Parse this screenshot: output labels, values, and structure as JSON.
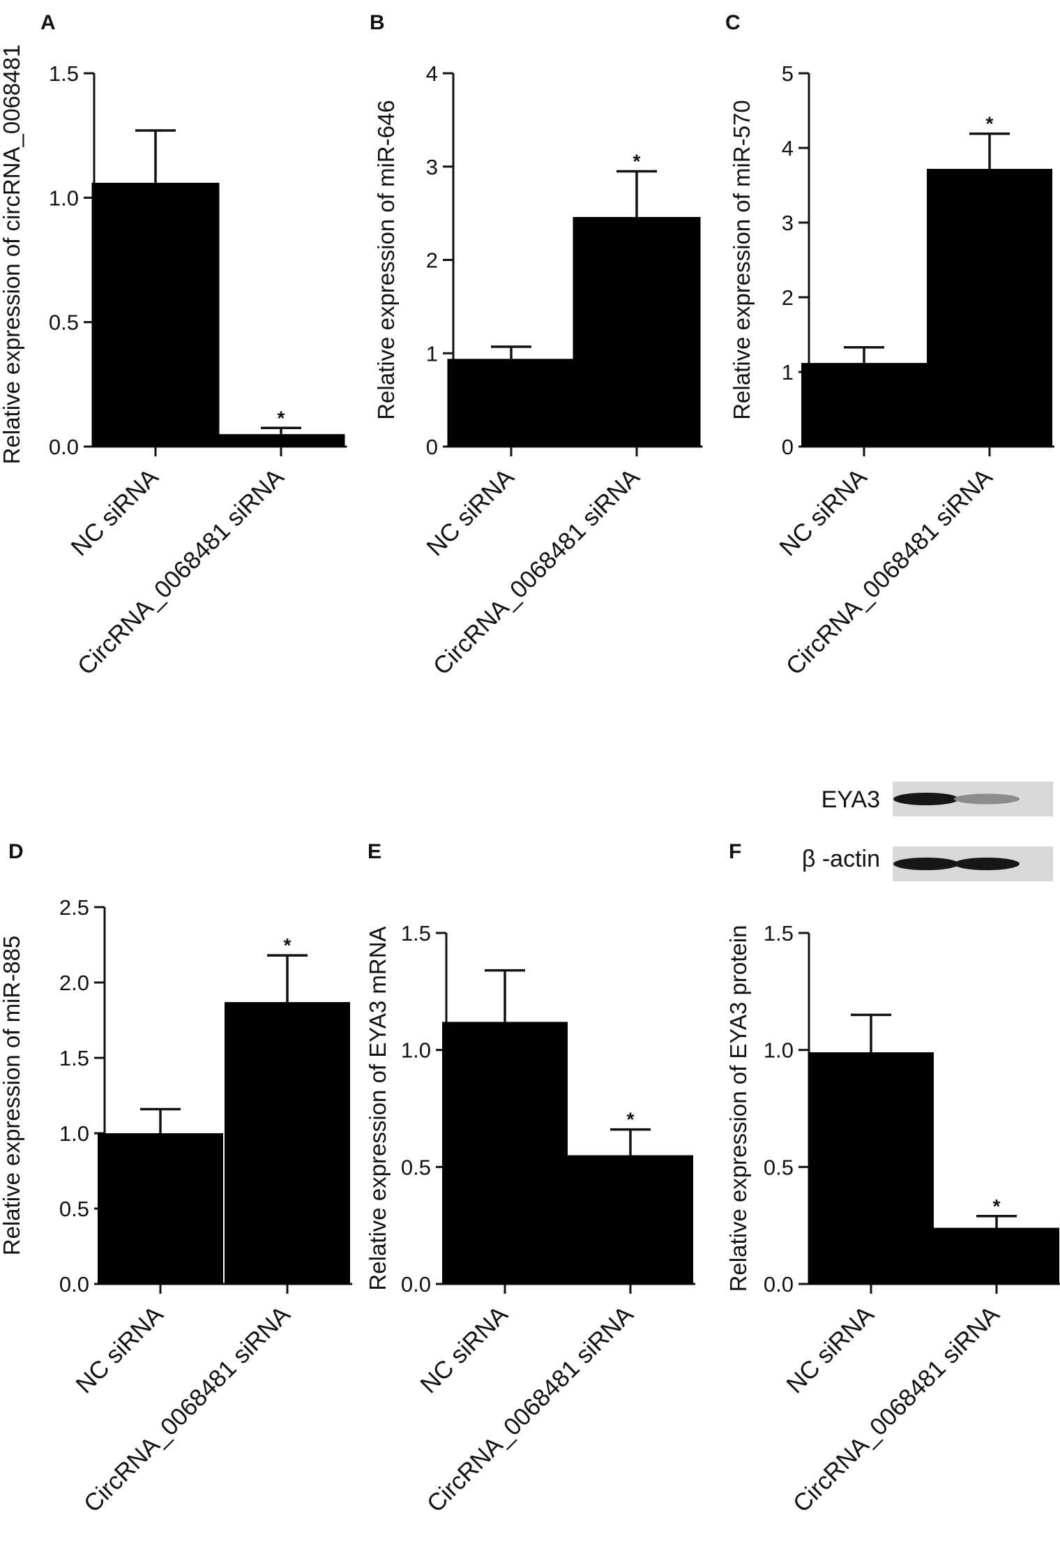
{
  "colors": {
    "bar": "#000000",
    "axis": "#111111",
    "blot_bg": "#d9d9d9",
    "band_strong": "#161616",
    "band_weak": "#8c8c8c"
  },
  "blot": {
    "labels": [
      "EYA3",
      "β -actin"
    ],
    "intensities": {
      "EYA3": [
        1.0,
        0.45
      ],
      "β -actin": [
        1.0,
        1.0
      ]
    }
  },
  "chart_data": [
    {
      "panel": "A",
      "type": "bar",
      "categories": [
        "NC siRNA",
        "CircRNA_0068481 siRNA"
      ],
      "values": [
        1.06,
        0.05
      ],
      "errors": [
        0.21,
        0.025
      ],
      "significance": [
        "",
        "*"
      ],
      "ylabel": "Relative expression of circRNA_0068481",
      "ylim": [
        0,
        1.5
      ],
      "yticks": [
        "0.0",
        "0.5",
        "1.0",
        "1.5"
      ]
    },
    {
      "panel": "B",
      "type": "bar",
      "categories": [
        "NC siRNA",
        "CircRNA_0068481 siRNA"
      ],
      "values": [
        0.94,
        2.46
      ],
      "errors": [
        0.13,
        0.49
      ],
      "significance": [
        "",
        "*"
      ],
      "ylabel": "Relative expression of miR-646",
      "ylim": [
        0,
        4
      ],
      "yticks": [
        "0",
        "1",
        "2",
        "3",
        "4"
      ]
    },
    {
      "panel": "C",
      "type": "bar",
      "categories": [
        "NC siRNA",
        "CircRNA_0068481 siRNA"
      ],
      "values": [
        1.12,
        3.72
      ],
      "errors": [
        0.21,
        0.47
      ],
      "significance": [
        "",
        "*"
      ],
      "ylabel": "Relative expression of miR-570",
      "ylim": [
        0,
        5
      ],
      "yticks": [
        "0",
        "1",
        "2",
        "3",
        "4",
        "5"
      ]
    },
    {
      "panel": "D",
      "type": "bar",
      "categories": [
        "NC siRNA",
        "CircRNA_0068481 siRNA"
      ],
      "values": [
        1.0,
        1.87
      ],
      "errors": [
        0.16,
        0.31
      ],
      "significance": [
        "",
        "*"
      ],
      "ylabel": "Relative expression of miR-885",
      "ylim": [
        0,
        2.5
      ],
      "yticks": [
        "0.0",
        "0.5",
        "1.0",
        "1.5",
        "2.0",
        "2.5"
      ]
    },
    {
      "panel": "E",
      "type": "bar",
      "categories": [
        "NC siRNA",
        "CircRNA_0068481 siRNA"
      ],
      "values": [
        1.12,
        0.55
      ],
      "errors": [
        0.22,
        0.11
      ],
      "significance": [
        "",
        "*"
      ],
      "ylabel": "Relative expression of EYA3 mRNA",
      "ylim": [
        0,
        1.5
      ],
      "yticks": [
        "0.0",
        "0.5",
        "1.0",
        "1.5"
      ]
    },
    {
      "panel": "F",
      "type": "bar",
      "categories": [
        "NC siRNA",
        "CircRNA_0068481 siRNA"
      ],
      "values": [
        0.99,
        0.24
      ],
      "errors": [
        0.16,
        0.05
      ],
      "significance": [
        "",
        "*"
      ],
      "ylabel": "Relative expression of EYA3 protein",
      "ylim": [
        0,
        1.5
      ],
      "yticks": [
        "0.0",
        "0.5",
        "1.0",
        "1.5"
      ]
    }
  ]
}
